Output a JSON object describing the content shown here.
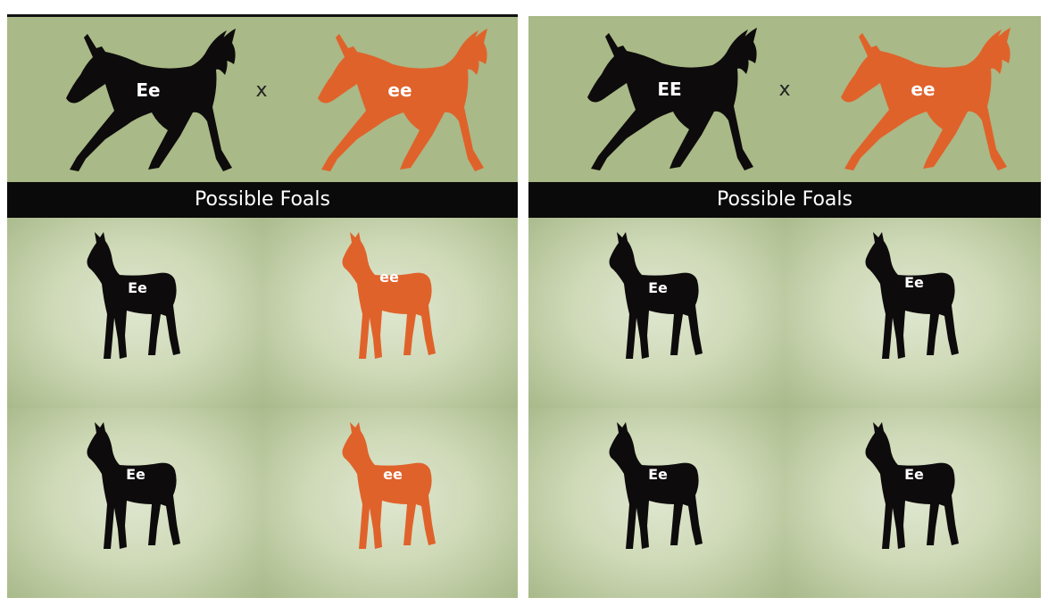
{
  "colors": {
    "black_coat": "#0d0b0b",
    "red_coat": "#e0622b",
    "parent_bg": "#a9b987",
    "banner_bg": "#0b0a0a"
  },
  "icons": {
    "parent": "trotting-horse-icon",
    "foal": "standing-foal-icon"
  },
  "banner_label": "Possible Foals",
  "cross_symbol": "x",
  "panels": [
    {
      "parents": [
        {
          "genotype": "Ee",
          "coat": "black"
        },
        {
          "genotype": "ee",
          "coat": "red"
        }
      ],
      "foals": [
        {
          "genotype": "Ee",
          "coat": "black"
        },
        {
          "genotype": "ee",
          "coat": "red"
        },
        {
          "genotype": "Ee",
          "coat": "black"
        },
        {
          "genotype": "ee",
          "coat": "red"
        }
      ]
    },
    {
      "parents": [
        {
          "genotype": "EE",
          "coat": "black"
        },
        {
          "genotype": "ee",
          "coat": "red"
        }
      ],
      "foals": [
        {
          "genotype": "Ee",
          "coat": "black"
        },
        {
          "genotype": "Ee",
          "coat": "black"
        },
        {
          "genotype": "Ee",
          "coat": "black"
        },
        {
          "genotype": "Ee",
          "coat": "black"
        }
      ]
    }
  ]
}
